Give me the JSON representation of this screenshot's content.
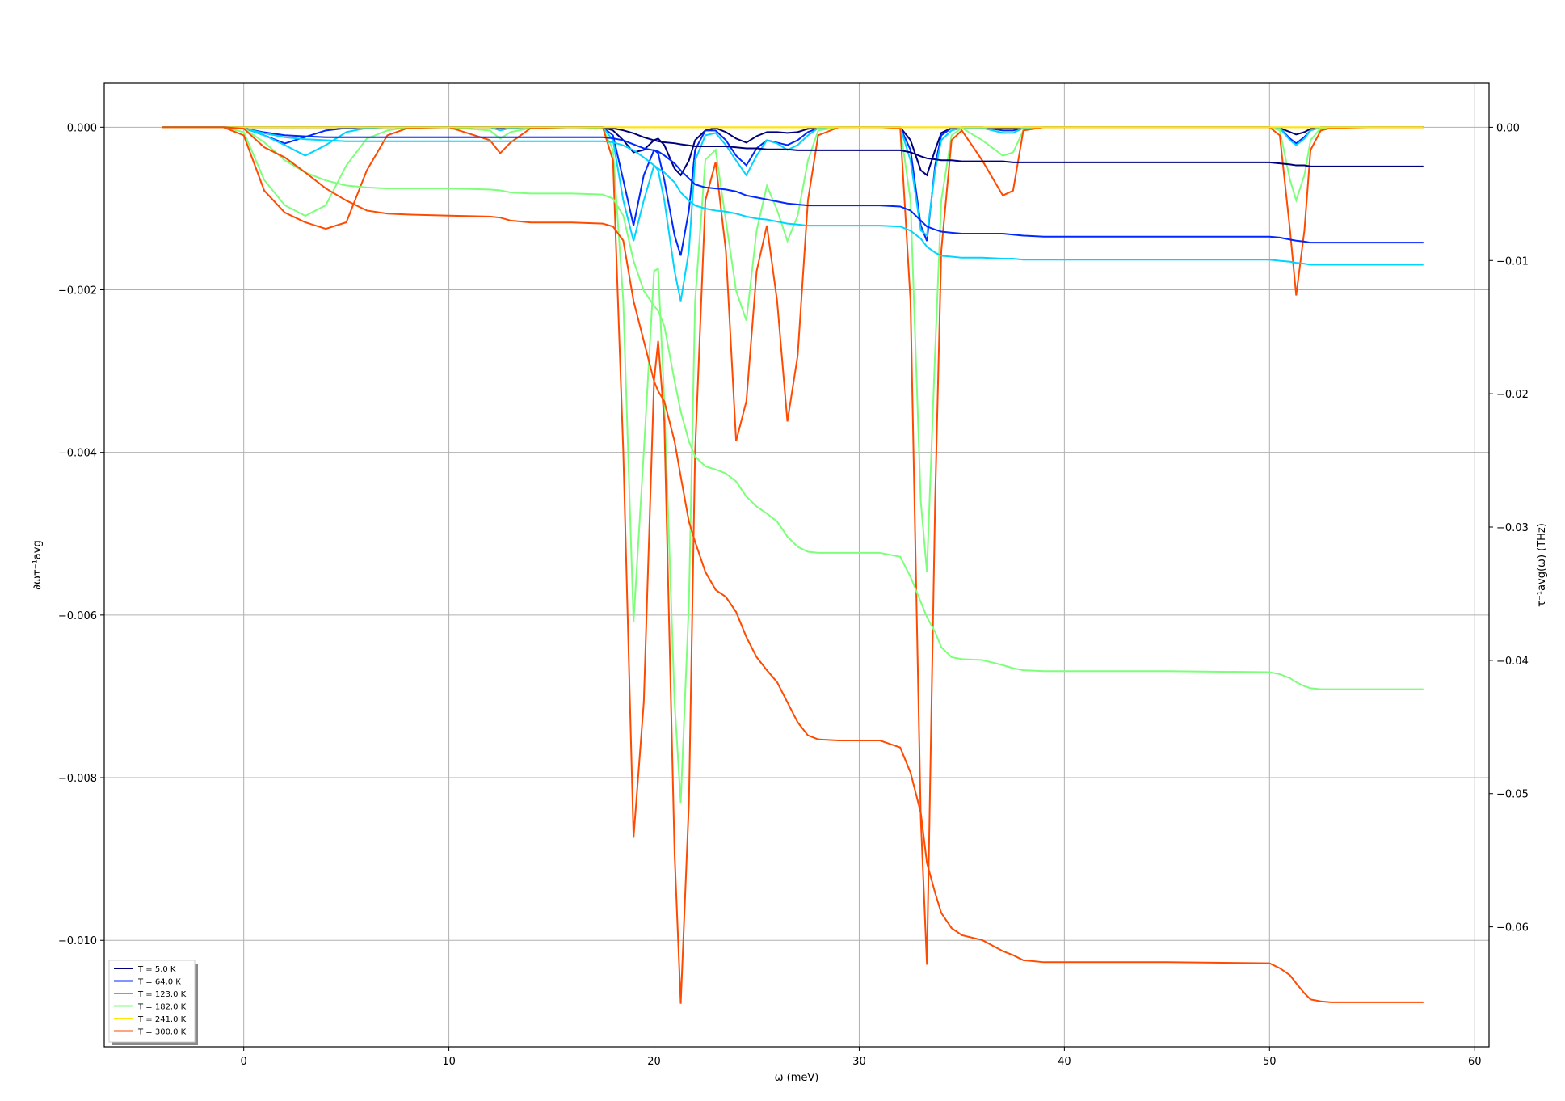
{
  "chart_data": {
    "type": "line",
    "xlabel": "ω (meV)",
    "ylabel": "∂ωτ⁻¹avg",
    "y2label": "τ⁻¹avg(ω) (THz)",
    "xlim": [
      -6.8,
      60.7
    ],
    "ylim": [
      -0.01131,
      0.00054
    ],
    "y2lim": [
      -0.069,
      0.0033
    ],
    "xticks": [
      0,
      10,
      20,
      30,
      40,
      50,
      60
    ],
    "yticks": [
      {
        "value": 0,
        "label": "0.000"
      },
      {
        "value": -0.002,
        "label": "−0.002"
      },
      {
        "value": -0.004,
        "label": "−0.004"
      },
      {
        "value": -0.006,
        "label": "−0.006"
      },
      {
        "value": -0.008,
        "label": "−0.008"
      },
      {
        "value": -0.01,
        "label": "−0.010"
      }
    ],
    "y2ticks": [
      {
        "value": 0,
        "label": "0.00"
      },
      {
        "value": -0.01,
        "label": "−0.01"
      },
      {
        "value": -0.02,
        "label": "−0.02"
      },
      {
        "value": -0.03,
        "label": "−0.03"
      },
      {
        "value": -0.04,
        "label": "−0.04"
      },
      {
        "value": -0.05,
        "label": "−0.05"
      },
      {
        "value": -0.06,
        "label": "−0.06"
      }
    ],
    "grid": true,
    "legend_loc": "lower left",
    "x": [
      -4,
      -1,
      0,
      1,
      2,
      3,
      4,
      5,
      6,
      7,
      8,
      10,
      12,
      12.5,
      13,
      14,
      16,
      17.5,
      18,
      18.5,
      19,
      19.5,
      20,
      20.2,
      20.5,
      21,
      21.3,
      21.7,
      22,
      22.5,
      23,
      23.5,
      24,
      24.5,
      25,
      25.5,
      26,
      26.5,
      27,
      27.5,
      28,
      29,
      30,
      31,
      32,
      32.5,
      33,
      33.3,
      33.7,
      34,
      34.5,
      35,
      36,
      37,
      37.5,
      38,
      39,
      40,
      45,
      50,
      50.5,
      51,
      51.3,
      51.7,
      52,
      52.5,
      53,
      55,
      57.5
    ],
    "series": [
      {
        "name": "T = 5.0 K",
        "color": "#00007f",
        "values": [
          0,
          0,
          0,
          0,
          0,
          0,
          0,
          0,
          0,
          0,
          0,
          0,
          0,
          0,
          0,
          0,
          0,
          0,
          -4e-05,
          -0.00016,
          -0.00031,
          -0.00028,
          -0.00016,
          -0.00014,
          -0.00022,
          -0.00051,
          -0.00059,
          -0.00041,
          -0.00016,
          -4e-05,
          -1e-05,
          -6e-05,
          -0.00014,
          -0.00019,
          -0.00011,
          -6e-05,
          -6e-05,
          -7e-05,
          -6e-05,
          -2e-05,
          0,
          0,
          0,
          0,
          0,
          -0.00016,
          -0.00053,
          -0.00059,
          -0.00028,
          -7e-05,
          -1e-05,
          0,
          0,
          -1e-05,
          -1e-05,
          0,
          0,
          0,
          0,
          0,
          -1e-05,
          -6e-05,
          -9e-05,
          -6e-05,
          -2e-05,
          0,
          0,
          0,
          0
        ]
      },
      {
        "name": "T = 64.0 K",
        "color": "#0028ff",
        "values": [
          0,
          0,
          -1e-05,
          -0.0001,
          -0.0002,
          -0.00012,
          -4e-05,
          -1e-05,
          0,
          0,
          0,
          0,
          0,
          -1e-05,
          0,
          0,
          0,
          0,
          -0.0001,
          -0.00065,
          -0.00121,
          -0.00059,
          -0.00028,
          -0.00032,
          -0.00065,
          -0.00133,
          -0.00158,
          -0.00102,
          -0.00028,
          -4e-05,
          -4e-05,
          -0.00016,
          -0.00035,
          -0.00047,
          -0.00026,
          -0.00016,
          -0.00019,
          -0.00022,
          -0.00016,
          -6e-05,
          -1e-05,
          0,
          0,
          0,
          0,
          -0.00028,
          -0.00121,
          -0.0014,
          -0.00047,
          -0.0001,
          -1e-05,
          0,
          0,
          -4e-05,
          -4e-05,
          -1e-05,
          0,
          0,
          0,
          0,
          -1e-05,
          -0.00014,
          -0.0002,
          -0.00012,
          -4e-05,
          0,
          0,
          0,
          0
        ]
      },
      {
        "name": "T = 123.0 K",
        "color": "#00d4ff",
        "values": [
          0,
          0,
          -1e-05,
          -0.0001,
          -0.00022,
          -0.00035,
          -0.00022,
          -6e-05,
          -1e-05,
          0,
          0,
          0,
          0,
          -4e-05,
          -1e-05,
          0,
          0,
          0,
          -0.00016,
          -0.0009,
          -0.0014,
          -0.0009,
          -0.00047,
          -0.00053,
          -0.0009,
          -0.00177,
          -0.00214,
          -0.00152,
          -0.00041,
          -0.0001,
          -7e-05,
          -0.00022,
          -0.00041,
          -0.00059,
          -0.00035,
          -0.00016,
          -0.0002,
          -0.00028,
          -0.00022,
          -0.0001,
          -1e-05,
          0,
          0,
          0,
          0,
          -0.00041,
          -0.00127,
          -0.00133,
          -0.00053,
          -0.00016,
          -4e-05,
          -1e-05,
          -1e-05,
          -7e-05,
          -7e-05,
          -1e-05,
          0,
          0,
          0,
          0,
          -1e-05,
          -0.00016,
          -0.00022,
          -0.00014,
          -4e-05,
          0,
          0,
          0,
          0
        ]
      },
      {
        "name": "T = 182.0 K",
        "color": "#7dff7a",
        "values": [
          0,
          0,
          -6e-05,
          -0.00065,
          -0.00096,
          -0.00109,
          -0.00096,
          -0.00047,
          -0.00014,
          -4e-05,
          0,
          0,
          -4e-05,
          -0.00014,
          -6e-05,
          -1e-05,
          0,
          -1e-05,
          -0.00028,
          -0.00214,
          -0.00609,
          -0.00399,
          -0.00177,
          -0.00174,
          -0.00337,
          -0.00707,
          -0.00831,
          -0.00584,
          -0.00214,
          -0.0004,
          -0.00028,
          -0.00115,
          -0.00201,
          -0.00238,
          -0.00127,
          -0.00072,
          -0.00102,
          -0.0014,
          -0.00109,
          -0.00041,
          -4e-05,
          0,
          0,
          0,
          -1e-05,
          -0.0009,
          -0.0046,
          -0.00547,
          -0.00275,
          -0.0009,
          -0.0001,
          -1e-05,
          -0.00016,
          -0.00035,
          -0.00031,
          -4e-05,
          0,
          0,
          0,
          0,
          -4e-05,
          -0.00065,
          -0.0009,
          -0.00059,
          -0.00016,
          -1e-05,
          0,
          0,
          0
        ]
      },
      {
        "name": "T = 241.0 K",
        "color": "#ffe500",
        "values": [
          0,
          0,
          0,
          0,
          0,
          0,
          0,
          0,
          0,
          0,
          0,
          0,
          0,
          0,
          0,
          0,
          0,
          0,
          0,
          0,
          0,
          0,
          0,
          0,
          0,
          0,
          0,
          0,
          0,
          0,
          0,
          0,
          0,
          0,
          0,
          0,
          0,
          0,
          0,
          0,
          0,
          0,
          0,
          0,
          0,
          0,
          0,
          0,
          0,
          0,
          0,
          0,
          0,
          0,
          0,
          0,
          0,
          0,
          0,
          0,
          0,
          0,
          0,
          0,
          0,
          0,
          0,
          0,
          0
        ]
      },
      {
        "name": "T = 300.0 K",
        "color": "#ff4a00",
        "values": [
          0,
          0,
          -0.0001,
          -0.00078,
          -0.00105,
          -0.00117,
          -0.00125,
          -0.00117,
          -0.00053,
          -0.0001,
          -1e-05,
          0,
          -0.00016,
          -0.00032,
          -0.00019,
          -1e-05,
          0,
          0,
          -0.00041,
          -0.00399,
          -0.00874,
          -0.00707,
          -0.00312,
          -0.00263,
          -0.00362,
          -0.00893,
          -0.01078,
          -0.00831,
          -0.00399,
          -0.0009,
          -0.00043,
          -0.00152,
          -0.00386,
          -0.00337,
          -0.00177,
          -0.00121,
          -0.00214,
          -0.00362,
          -0.00281,
          -0.0009,
          -0.0001,
          0,
          0,
          0,
          -1e-05,
          -0.00214,
          -0.0085,
          -0.0103,
          -0.0046,
          -0.00152,
          -0.00016,
          -4e-05,
          -0.00041,
          -0.00084,
          -0.00078,
          -4e-05,
          0,
          0,
          0,
          0,
          -0.0001,
          -0.00127,
          -0.00207,
          -0.00127,
          -0.00028,
          -4e-05,
          -1e-05,
          0,
          0
        ]
      },
      {
        "axis": "y2",
        "color": "#00007f",
        "values": [
          0,
          0,
          0,
          0,
          0,
          0,
          0,
          0,
          0,
          0,
          0,
          0,
          0,
          0,
          0,
          0,
          0,
          0,
          -8e-05,
          -0.00023,
          -0.00045,
          -0.00075,
          -0.00098,
          -0.00105,
          -0.00113,
          -0.0012,
          -0.00128,
          -0.00136,
          -0.00143,
          -0.00143,
          -0.00143,
          -0.00143,
          -0.00151,
          -0.00158,
          -0.00158,
          -0.00166,
          -0.00166,
          -0.00166,
          -0.00173,
          -0.00173,
          -0.00173,
          -0.00173,
          -0.00173,
          -0.00173,
          -0.00173,
          -0.00188,
          -0.00218,
          -0.00233,
          -0.00241,
          -0.00248,
          -0.00248,
          -0.00256,
          -0.00256,
          -0.00256,
          -0.00264,
          -0.00264,
          -0.00264,
          -0.00264,
          -0.00264,
          -0.00264,
          -0.00271,
          -0.00279,
          -0.00286,
          -0.00286,
          -0.00294,
          -0.00294,
          -0.00294,
          -0.00294,
          -0.00294
        ]
      },
      {
        "axis": "y2",
        "color": "#0028ff",
        "values": [
          0,
          0,
          -8e-05,
          -0.00038,
          -0.0006,
          -0.00068,
          -0.00075,
          -0.00075,
          -0.00075,
          -0.00075,
          -0.00075,
          -0.00075,
          -0.00075,
          -0.00075,
          -0.00075,
          -0.00075,
          -0.00075,
          -0.00075,
          -0.00083,
          -0.00098,
          -0.00128,
          -0.00158,
          -0.00173,
          -0.00181,
          -0.00211,
          -0.00271,
          -0.00324,
          -0.00384,
          -0.00429,
          -0.00452,
          -0.00459,
          -0.00467,
          -0.00482,
          -0.00512,
          -0.00527,
          -0.00542,
          -0.00557,
          -0.00572,
          -0.0058,
          -0.00587,
          -0.00587,
          -0.00587,
          -0.00587,
          -0.00587,
          -0.00595,
          -0.00625,
          -0.007,
          -0.00745,
          -0.00768,
          -0.00783,
          -0.00791,
          -0.00798,
          -0.00798,
          -0.00798,
          -0.00806,
          -0.00813,
          -0.00821,
          -0.00821,
          -0.00821,
          -0.00821,
          -0.00828,
          -0.00843,
          -0.00851,
          -0.00858,
          -0.00866,
          -0.00866,
          -0.00866,
          -0.00866,
          -0.00866
        ]
      },
      {
        "axis": "y2",
        "color": "#00d4ff",
        "values": [
          0,
          0,
          -8e-05,
          -0.00045,
          -0.00075,
          -0.0009,
          -0.00098,
          -0.00105,
          -0.00105,
          -0.00105,
          -0.00105,
          -0.00105,
          -0.00105,
          -0.00105,
          -0.00105,
          -0.00105,
          -0.00105,
          -0.00105,
          -0.00113,
          -0.00136,
          -0.00173,
          -0.00226,
          -0.00286,
          -0.00309,
          -0.00339,
          -0.00414,
          -0.00489,
          -0.0055,
          -0.00587,
          -0.0061,
          -0.00625,
          -0.00633,
          -0.00648,
          -0.0067,
          -0.00685,
          -0.00693,
          -0.00708,
          -0.00723,
          -0.0073,
          -0.00738,
          -0.00738,
          -0.00738,
          -0.00738,
          -0.00738,
          -0.00745,
          -0.00776,
          -0.00836,
          -0.00896,
          -0.00941,
          -0.00964,
          -0.00971,
          -0.00979,
          -0.00979,
          -0.00986,
          -0.00986,
          -0.00994,
          -0.00994,
          -0.00994,
          -0.00994,
          -0.00994,
          -0.01002,
          -0.01009,
          -0.01017,
          -0.01024,
          -0.01032,
          -0.01032,
          -0.01032,
          -0.01032,
          -0.01032
        ]
      },
      {
        "axis": "y2",
        "color": "#7dff7a",
        "values": [
          0,
          0,
          -8e-05,
          -0.00113,
          -0.00248,
          -0.00339,
          -0.00399,
          -0.00437,
          -0.00452,
          -0.00459,
          -0.00459,
          -0.00459,
          -0.00467,
          -0.00474,
          -0.00489,
          -0.00497,
          -0.00497,
          -0.00505,
          -0.00535,
          -0.00663,
          -0.01002,
          -0.01227,
          -0.0134,
          -0.01378,
          -0.01491,
          -0.01905,
          -0.02131,
          -0.02357,
          -0.0247,
          -0.02545,
          -0.02568,
          -0.02598,
          -0.02658,
          -0.02771,
          -0.02846,
          -0.02899,
          -0.02959,
          -0.03072,
          -0.03148,
          -0.03185,
          -0.03193,
          -0.03193,
          -0.03193,
          -0.03193,
          -0.03223,
          -0.03373,
          -0.03562,
          -0.03675,
          -0.03788,
          -0.03901,
          -0.03976,
          -0.03991,
          -0.03998,
          -0.04036,
          -0.04059,
          -0.04074,
          -0.04081,
          -0.04081,
          -0.04081,
          -0.04089,
          -0.04104,
          -0.04134,
          -0.04164,
          -0.04194,
          -0.04209,
          -0.04217,
          -0.04217,
          -0.04217,
          -0.04217
        ]
      },
      {
        "axis": "y2",
        "color": "#ffe500",
        "values": [
          0,
          0,
          0,
          0,
          0,
          0,
          0,
          0,
          0,
          0,
          0,
          0,
          0,
          0,
          0,
          0,
          0,
          0,
          0,
          0,
          0,
          0,
          0,
          0,
          0,
          0,
          0,
          0,
          0,
          0,
          0,
          0,
          0,
          0,
          0,
          0,
          0,
          0,
          0,
          0,
          0,
          0,
          0,
          0,
          0,
          0,
          0,
          0,
          0,
          0,
          0,
          0,
          0,
          0,
          0,
          0,
          0,
          0,
          0,
          0,
          0,
          0,
          0,
          0,
          0,
          0,
          0,
          0,
          0
        ]
      },
      {
        "axis": "y2",
        "color": "#ff4a00",
        "values": [
          0,
          0,
          -0.0001,
          -0.0015,
          -0.00226,
          -0.00339,
          -0.00459,
          -0.0055,
          -0.00625,
          -0.00648,
          -0.00655,
          -0.00663,
          -0.0067,
          -0.00678,
          -0.007,
          -0.00715,
          -0.00715,
          -0.00723,
          -0.00745,
          -0.00851,
          -0.01303,
          -0.01604,
          -0.01905,
          -0.0198,
          -0.02056,
          -0.02357,
          -0.0262,
          -0.02959,
          -0.0311,
          -0.03336,
          -0.03471,
          -0.03524,
          -0.03637,
          -0.03825,
          -0.03976,
          -0.04074,
          -0.04164,
          -0.04315,
          -0.04465,
          -0.04563,
          -0.04593,
          -0.04601,
          -0.04601,
          -0.04601,
          -0.04654,
          -0.04842,
          -0.05143,
          -0.0552,
          -0.05745,
          -0.05896,
          -0.06009,
          -0.06062,
          -0.06099,
          -0.06182,
          -0.06212,
          -0.0625,
          -0.06265,
          -0.06265,
          -0.06265,
          -0.06273,
          -0.0631,
          -0.06363,
          -0.06423,
          -0.06498,
          -0.06544,
          -0.06559,
          -0.06566,
          -0.06566,
          -0.06566
        ]
      }
    ]
  }
}
